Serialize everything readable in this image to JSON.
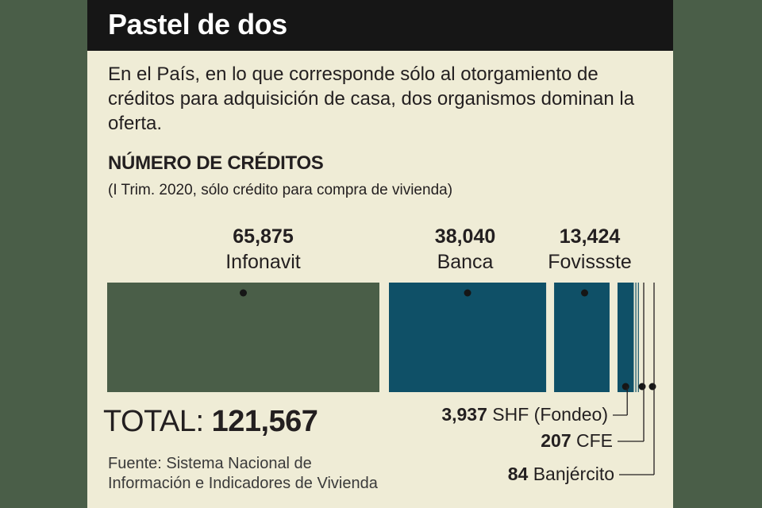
{
  "header": {
    "title": "Pastel de dos"
  },
  "description": "En el País, en lo que corresponde sólo al otorgamiento de créditos para adquisición de casa, dos organismos dominan la oferta.",
  "chart_data": {
    "type": "bar",
    "title": "NÚMERO DE CRÉDITOS",
    "subtitle": "(I Trim. 2020, sólo crédito para compra de vivienda)",
    "categories": [
      "Infonavit",
      "Banca",
      "Fovissste",
      "SHF (Fondeo)",
      "CFE",
      "Banjército"
    ],
    "values": [
      65875,
      38040,
      13424,
      3937,
      207,
      84
    ],
    "value_labels": [
      "65,875",
      "38,040",
      "13,424",
      "3,937",
      "207",
      "84"
    ],
    "colors": [
      "#4a5e48",
      "#0f5067",
      "#0f5067",
      "#0f5067",
      "#0f5067",
      "#0f5067"
    ],
    "total_label": "TOTAL:",
    "total_value": "121,567"
  },
  "source": "Fuente: Sistema Nacional de Información e Indicadores de Vivienda"
}
